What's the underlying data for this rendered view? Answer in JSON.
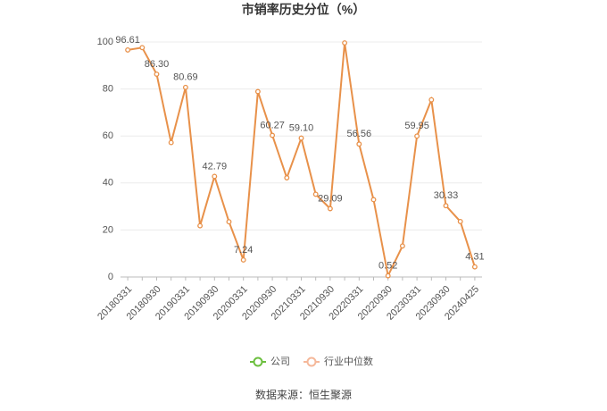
{
  "chart_data": {
    "type": "line",
    "title": "市销率历史分位（%）",
    "categories": [
      "20180331",
      null,
      "20180930",
      null,
      "20190331",
      null,
      "20190930",
      null,
      "20200331",
      null,
      "20200930",
      null,
      "20210331",
      null,
      "20210930",
      null,
      "20220331",
      null,
      "20220930",
      null,
      "20230331",
      null,
      "20230930",
      null,
      "20240425"
    ],
    "values": [
      96.61,
      97.6,
      86.3,
      57.2,
      80.69,
      21.8,
      42.79,
      23.5,
      7.24,
      78.9,
      60.27,
      42.2,
      59.1,
      35.2,
      29.09,
      99.6,
      56.56,
      32.9,
      0.52,
      13.2,
      59.95,
      75.4,
      30.33,
      23.6,
      4.31
    ],
    "value_labels": [
      "96.61",
      null,
      "86.30",
      null,
      "80.69",
      null,
      "42.79",
      null,
      "7.24",
      null,
      "60.27",
      null,
      "59.10",
      null,
      "29.09",
      null,
      "56.56",
      null,
      "0.52",
      null,
      "59.95",
      null,
      "30.33",
      null,
      "4.31"
    ],
    "color": "#e8914a",
    "legend": [
      {
        "name": "公司",
        "color": "#6cbf3f"
      },
      {
        "name": "行业中位数",
        "color": "#f5b89a"
      }
    ],
    "ylim": [
      0,
      100
    ],
    "yticks": [
      0,
      20,
      40,
      60,
      80,
      100
    ],
    "grid": true,
    "source": "数据来源：恒生聚源"
  }
}
